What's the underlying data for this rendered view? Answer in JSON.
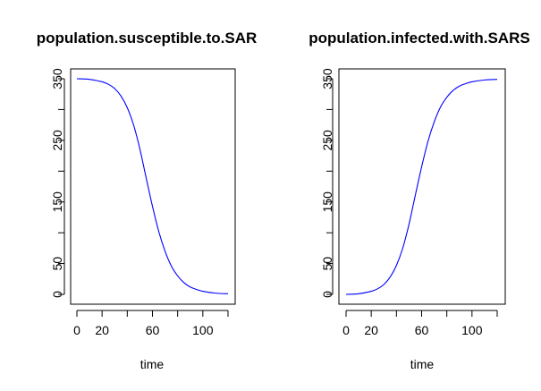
{
  "colors": {
    "line": "#0000ff",
    "axis": "#000000",
    "background": "#ffffff"
  },
  "chart_data": [
    {
      "type": "line",
      "title": "population.susceptible.to.SAR",
      "xlabel": "time",
      "ylabel": "",
      "xlim": [
        0,
        120
      ],
      "ylim": [
        0,
        350
      ],
      "xticks": [
        0,
        20,
        40,
        60,
        80,
        100,
        120
      ],
      "xtick_labels": [
        "0",
        "20",
        "",
        "60",
        "",
        "100",
        ""
      ],
      "yticks": [
        0,
        50,
        100,
        150,
        200,
        250,
        300,
        350
      ],
      "ytick_labels": [
        "0",
        "50",
        "",
        "150",
        "",
        "250",
        "",
        "350"
      ],
      "grid": false,
      "x": [
        0,
        10,
        20,
        25,
        30,
        35,
        40,
        45,
        50,
        55,
        60,
        65,
        70,
        75,
        80,
        85,
        90,
        95,
        100,
        110,
        120
      ],
      "series": [
        {
          "values": [
            350,
            349,
            345,
            341,
            334,
            322,
            303,
            275,
            236,
            189,
            143,
            102,
            70,
            46,
            30,
            19,
            12,
            8,
            5,
            2,
            1
          ]
        }
      ]
    },
    {
      "type": "line",
      "title": "population.infected.with.SARS",
      "xlabel": "time",
      "ylabel": "",
      "xlim": [
        0,
        120
      ],
      "ylim": [
        0,
        350
      ],
      "xticks": [
        0,
        20,
        40,
        60,
        80,
        100,
        120
      ],
      "xtick_labels": [
        "0",
        "20",
        "",
        "60",
        "",
        "100",
        ""
      ],
      "yticks": [
        0,
        50,
        100,
        150,
        200,
        250,
        300,
        350
      ],
      "ytick_labels": [
        "0",
        "50",
        "",
        "150",
        "",
        "250",
        "",
        "350"
      ],
      "grid": false,
      "x": [
        0,
        10,
        20,
        25,
        30,
        35,
        40,
        45,
        50,
        55,
        60,
        65,
        70,
        75,
        80,
        85,
        90,
        95,
        100,
        110,
        120
      ],
      "series": [
        {
          "values": [
            0,
            1,
            5,
            9,
            16,
            28,
            47,
            75,
            114,
            161,
            207,
            248,
            280,
            304,
            320,
            331,
            338,
            342,
            345,
            348,
            349
          ]
        }
      ]
    }
  ]
}
